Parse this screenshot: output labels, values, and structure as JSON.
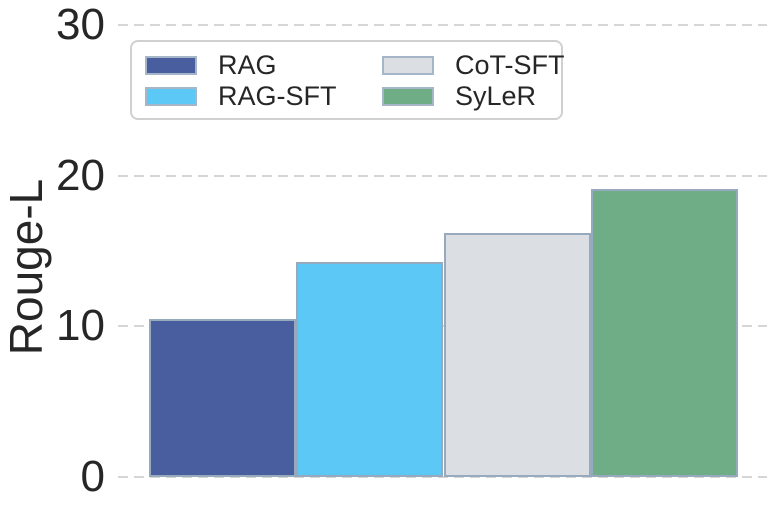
{
  "chart_data": {
    "type": "bar",
    "title": "",
    "xlabel": "",
    "ylabel": "Rouge-L",
    "ylim": [
      0,
      30
    ],
    "yticks": [
      0,
      10,
      20,
      30
    ],
    "categories": [
      "RAG",
      "RAG-SFT",
      "CoT-SFT",
      "SyLeR"
    ],
    "series": [
      {
        "name": "RAG",
        "value": 10.5,
        "color": "#495E9E"
      },
      {
        "name": "RAG-SFT",
        "value": 14.3,
        "color": "#5BC8F5"
      },
      {
        "name": "CoT-SFT",
        "value": 16.2,
        "color": "#DBDEE3"
      },
      {
        "name": "SyLeR",
        "value": 19.1,
        "color": "#6EAD86"
      }
    ],
    "bar_edge_color": "#97A9BC",
    "grid": "horizontal-dashed",
    "legend_position": "upper-left",
    "legend_columns": 2
  },
  "colors": {
    "text": "#262626",
    "gridline": "#d6d6d6",
    "legend_border": "#d0d0d0",
    "background": "#ffffff"
  }
}
